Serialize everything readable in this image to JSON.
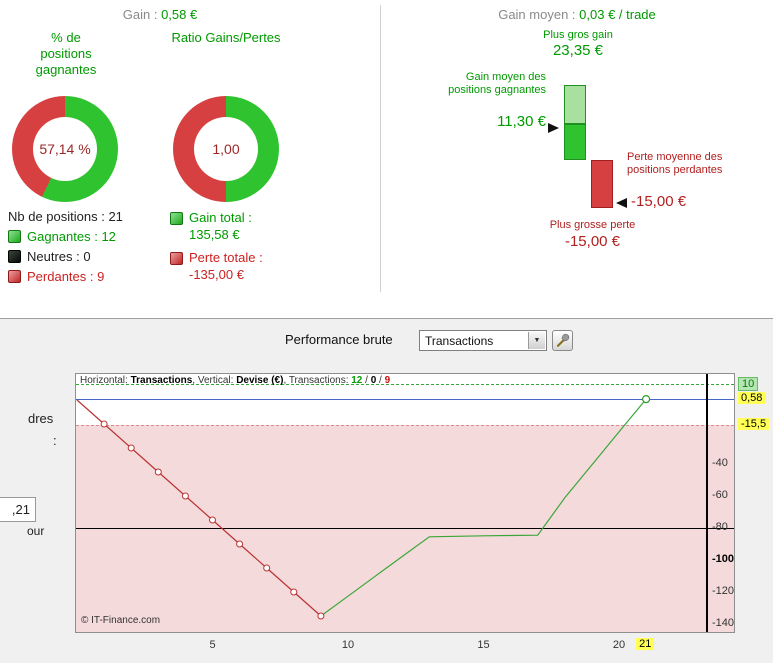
{
  "left_stats": {
    "gain_label": "Gain :",
    "gain_value": "0,58 €",
    "winrate": {
      "title": "% de positions gagnantes",
      "center": "57,14 %",
      "green_pct": 57.14,
      "green": "#2fc42f",
      "red": "#d64040"
    },
    "ratio": {
      "title": "Ratio Gains/Pertes",
      "center": "1,00",
      "green_pct": 50,
      "green": "#2fc42f",
      "red": "#d64040"
    },
    "nb_positions": "Nb de positions : 21",
    "legend": [
      {
        "label": "Gagnantes : 12"
      },
      {
        "label": "Neutres : 0"
      },
      {
        "label": "Perdantes : 9"
      }
    ],
    "gain_total_label": "Gain total :",
    "gain_total_value": "135,58 €",
    "perte_totale_label": "Perte totale :",
    "perte_totale_value": "-135,00 €"
  },
  "right_stats": {
    "title_label": "Gain moyen :",
    "title_value": "0,03 € / trade",
    "max_gain_label": "Plus gros gain",
    "max_gain_value": "23,35 €",
    "avg_gain_label": "Gain moyen des positions gagnantes",
    "avg_gain_value": "11,30 €",
    "avg_loss_label": "Perte moyenne des positions perdantes",
    "avg_loss_value": "-15,00 €",
    "max_loss_label": "Plus grosse perte",
    "max_loss_value": "-15,00 €",
    "bars": {
      "max_gain": 23.35,
      "avg_gain": 11.3,
      "max_loss": 15.0,
      "green_light": "#a8e0a0",
      "green": "#2fc42f",
      "green_border": "#1f8f1f",
      "red": "#d64040",
      "red_border": "#a02020"
    }
  },
  "toolbar": {
    "title": "Performance brute",
    "dropdown_value": "Transactions"
  },
  "icons": {
    "dropdown_arrow": "▼",
    "tool_icon": "wrench"
  },
  "left_fragments": {
    "frag1": "dres",
    "frag2": ":",
    "frag3": ",21",
    "frag4": "our"
  },
  "chart_data": {
    "type": "line",
    "header": {
      "h_label": "Horizontal: ",
      "h_value": "Transactions",
      "sep1": ", Vertical: ",
      "v_value": "Devise (€)",
      "sep2": ", Transactions: ",
      "wins": "12",
      "slash1": " / ",
      "neutres": "0",
      "slash2": " / ",
      "losses": "9"
    },
    "copyright": "© IT-Finance.com",
    "xlim": [
      0,
      23.3
    ],
    "ylim": [
      -145,
      11
    ],
    "levels": {
      "upper_dashed_green": 10,
      "current_blue": 0.58,
      "lower_dashed_pink": -15.5,
      "solid_black": -80
    },
    "badges": {
      "upper": "10",
      "current": "0,58",
      "lower": "-15,5"
    },
    "x_ticks": [
      5,
      10,
      15,
      20
    ],
    "x_highlight": "21",
    "right_ticks": [
      "-40",
      "-60",
      "-80",
      "-100",
      "-120",
      "-140"
    ],
    "bold_tick": "-100",
    "series": [
      {
        "name": "losing-phase",
        "color": "#bb3333",
        "markers": true,
        "marker_skip_first": true,
        "x": [
          0,
          1,
          2,
          3,
          4,
          5,
          6,
          7,
          8,
          9
        ],
        "y": [
          0,
          -15,
          -30,
          -45,
          -60,
          -75,
          -90,
          -105,
          -120,
          -135
        ]
      },
      {
        "name": "winning-phase",
        "color": "#3aa63a",
        "markers": false,
        "x": [
          9,
          10,
          11,
          12,
          13,
          14,
          15,
          16,
          17,
          18,
          19,
          20,
          21
        ],
        "y": [
          -135,
          -122.6,
          -110.2,
          -97.8,
          -85.5,
          -85.2,
          -84.9,
          -84.7,
          -84.5,
          -61.15,
          -40.55,
          -19.95,
          0.58
        ]
      }
    ],
    "end_marker": {
      "x": 21,
      "y": 0.58,
      "color": "#2a9a2a"
    }
  }
}
